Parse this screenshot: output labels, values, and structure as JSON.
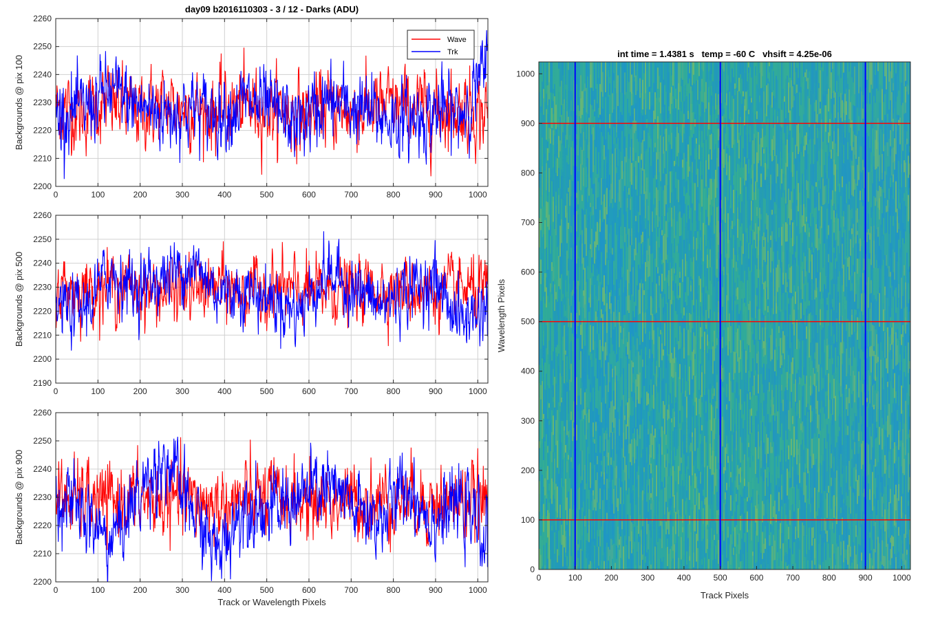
{
  "colors": {
    "wave": "#ff0000",
    "trk": "#0000ff",
    "grid": "#d0d0d0",
    "axis": "#262626",
    "heat_low": "#1f97c9",
    "heat_mid": "#2aa6a0",
    "heat_high": "#9ec74a"
  },
  "chart_data": [
    {
      "type": "line",
      "title": "day09 b2016110303 - 3 / 12 - Darks (ADU)",
      "xlabel": "",
      "ylabel": "Backgrounds @ pix 100",
      "xlim": [
        0,
        1024
      ],
      "ylim": [
        2200,
        2260
      ],
      "xticks": [
        0,
        100,
        200,
        300,
        400,
        500,
        600,
        700,
        800,
        900,
        1000
      ],
      "yticks": [
        2200,
        2210,
        2220,
        2230,
        2240,
        2250,
        2260
      ],
      "grid": true,
      "legend": "top-right",
      "series": [
        {
          "name": "Wave",
          "color": "#ff0000",
          "x": [
            0,
            64,
            128,
            192,
            256,
            320,
            384,
            448,
            512,
            576,
            640,
            704,
            768,
            832,
            896,
            960,
            1024
          ],
          "values": [
            2228,
            2226,
            2230,
            2227,
            2229,
            2228,
            2227,
            2229,
            2228,
            2226,
            2228,
            2227,
            2228,
            2229,
            2227,
            2228,
            2226
          ]
        },
        {
          "name": "Trk",
          "color": "#0000ff",
          "x": [
            0,
            64,
            128,
            192,
            256,
            320,
            384,
            448,
            512,
            576,
            640,
            704,
            768,
            832,
            896,
            960,
            1024
          ],
          "values": [
            2226,
            2227,
            2234,
            2229,
            2226,
            2228,
            2226,
            2230,
            2227,
            2222,
            2230,
            2228,
            2225,
            2223,
            2227,
            2226,
            2243
          ]
        }
      ]
    },
    {
      "type": "line",
      "title": "",
      "xlabel": "",
      "ylabel": "Backgrounds @ pix 500",
      "xlim": [
        0,
        1024
      ],
      "ylim": [
        2190,
        2260
      ],
      "xticks": [
        0,
        100,
        200,
        300,
        400,
        500,
        600,
        700,
        800,
        900,
        1000
      ],
      "yticks": [
        2190,
        2200,
        2210,
        2220,
        2230,
        2240,
        2250,
        2260
      ],
      "grid": true,
      "series": [
        {
          "name": "Wave",
          "color": "#ff0000",
          "x": [
            0,
            64,
            128,
            192,
            256,
            320,
            384,
            448,
            512,
            576,
            640,
            704,
            768,
            832,
            896,
            960,
            1024
          ],
          "values": [
            2230,
            2229,
            2231,
            2229,
            2228,
            2229,
            2230,
            2228,
            2229,
            2228,
            2229,
            2228,
            2230,
            2229,
            2228,
            2229,
            2227
          ]
        },
        {
          "name": "Trk",
          "color": "#0000ff",
          "x": [
            0,
            64,
            128,
            192,
            256,
            320,
            384,
            448,
            512,
            576,
            640,
            704,
            768,
            832,
            896,
            960,
            1024
          ],
          "values": [
            2222,
            2220,
            2236,
            2230,
            2234,
            2240,
            2228,
            2229,
            2225,
            2220,
            2236,
            2230,
            2222,
            2229,
            2233,
            2216,
            2222
          ]
        }
      ]
    },
    {
      "type": "line",
      "title": "",
      "xlabel": "Track or Wavelength Pixels",
      "ylabel": "Backgrounds @ pix 900",
      "xlim": [
        0,
        1024
      ],
      "ylim": [
        2200,
        2260
      ],
      "xticks": [
        0,
        100,
        200,
        300,
        400,
        500,
        600,
        700,
        800,
        900,
        1000
      ],
      "yticks": [
        2200,
        2210,
        2220,
        2230,
        2240,
        2250,
        2260
      ],
      "grid": true,
      "series": [
        {
          "name": "Wave",
          "color": "#ff0000",
          "x": [
            0,
            64,
            128,
            192,
            256,
            320,
            384,
            448,
            512,
            576,
            640,
            704,
            768,
            832,
            896,
            960,
            1024
          ],
          "values": [
            2230,
            2229,
            2228,
            2230,
            2228,
            2229,
            2227,
            2229,
            2230,
            2228,
            2229,
            2228,
            2229,
            2230,
            2228,
            2229,
            2228
          ]
        },
        {
          "name": "Trk",
          "color": "#0000ff",
          "x": [
            0,
            64,
            128,
            192,
            256,
            320,
            384,
            448,
            512,
            576,
            640,
            704,
            768,
            832,
            896,
            960,
            1024
          ],
          "values": [
            2232,
            2224,
            2214,
            2230,
            2244,
            2226,
            2210,
            2228,
            2225,
            2230,
            2234,
            2226,
            2222,
            2234,
            2222,
            2228,
            2215
          ]
        }
      ]
    },
    {
      "type": "heatmap",
      "title": "int time = 1.4381 s   temp = -60 C   vhsift = 4.25e-06",
      "xlabel": "Track Pixels",
      "ylabel": "Wavelength Pixels",
      "xlim": [
        0,
        1024
      ],
      "ylim": [
        0,
        1024
      ],
      "xticks": [
        0,
        100,
        200,
        300,
        400,
        500,
        600,
        700,
        800,
        900,
        1000
      ],
      "yticks": [
        0,
        100,
        200,
        300,
        400,
        500,
        600,
        700,
        800,
        900,
        1000
      ],
      "vertical_lines": [
        100,
        500,
        900
      ],
      "horizontal_lines": [
        100,
        500,
        900
      ],
      "vertical_line_color": "#0000ff",
      "horizontal_line_color": "#ff0000"
    }
  ]
}
